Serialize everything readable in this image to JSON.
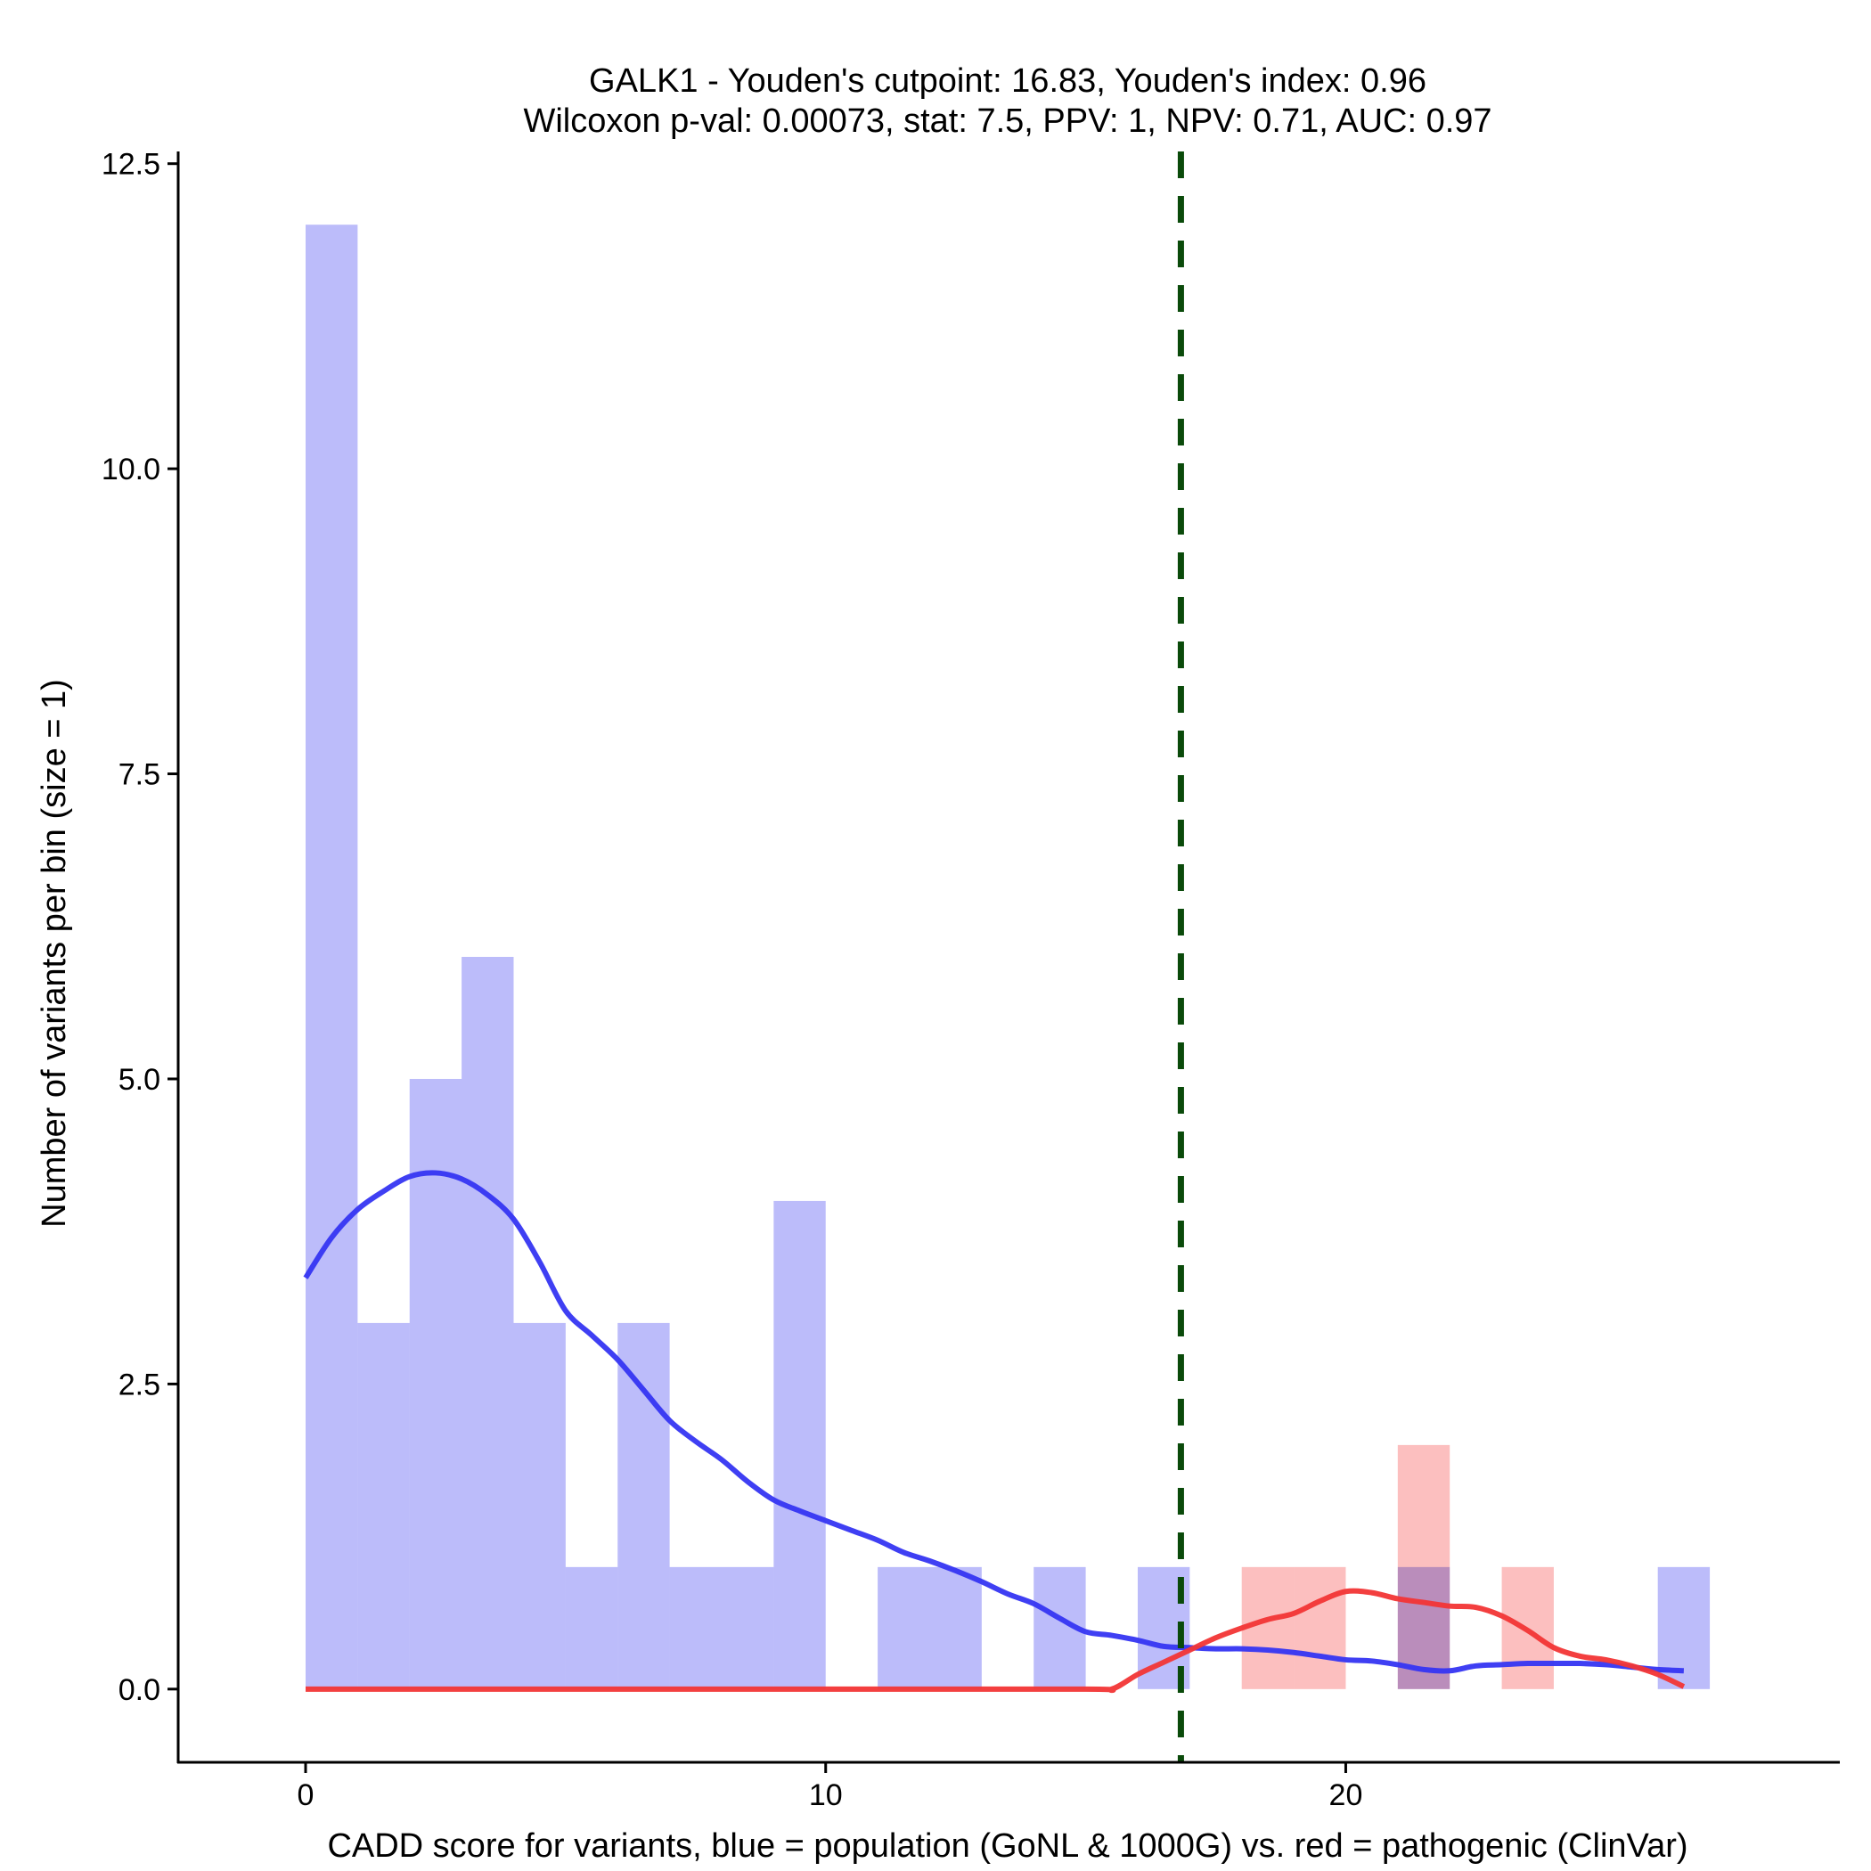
{
  "chart_data": {
    "type": "histogram",
    "title": "GALK1 - Youden's cutpoint: 16.83, Youden's index: 0.96",
    "subtitle": "Wilcoxon p-val: 0.00073, stat: 7.5, PPV: 1, NPV: 0.71, AUC: 0.97",
    "xlabel": "CADD score for variants, blue = population (GoNL & 1000G) vs. red = pathogenic (ClinVar)",
    "ylabel": "Number of variants per bin (size = 1)",
    "xlim": [
      -2.45,
      29.5
    ],
    "ylim": [
      -0.6,
      12.6
    ],
    "x_ticks": [
      0,
      10,
      20
    ],
    "x_tick_labels": [
      "0",
      "10",
      "20"
    ],
    "y_ticks": [
      0,
      2.5,
      5,
      7.5,
      10,
      12.5
    ],
    "y_tick_labels": [
      "0.0",
      "2.5",
      "5.0",
      "7.5",
      "10.0",
      "12.5"
    ],
    "bin_size": 1,
    "cutpoint": 16.83,
    "colors": {
      "population_bar": "#bcbcfa",
      "pathogenic_bar": "#fcbcbc",
      "population_line": "#3535f2",
      "pathogenic_line": "#f23535",
      "cutpoint_line": "#0a4a0a",
      "axis": "#000000"
    },
    "series": [
      {
        "name": "population",
        "kind": "bars",
        "bins": [
          {
            "x0": 0,
            "x1": 1,
            "count": 12
          },
          {
            "x0": 1,
            "x1": 2,
            "count": 3
          },
          {
            "x0": 2,
            "x1": 3,
            "count": 5
          },
          {
            "x0": 3,
            "x1": 4,
            "count": 6
          },
          {
            "x0": 4,
            "x1": 5,
            "count": 3
          },
          {
            "x0": 5,
            "x1": 6,
            "count": 1
          },
          {
            "x0": 6,
            "x1": 7,
            "count": 3
          },
          {
            "x0": 7,
            "x1": 8,
            "count": 1
          },
          {
            "x0": 8,
            "x1": 9,
            "count": 1
          },
          {
            "x0": 9,
            "x1": 10,
            "count": 4
          },
          {
            "x0": 11,
            "x1": 12,
            "count": 1
          },
          {
            "x0": 12,
            "x1": 13,
            "count": 1
          },
          {
            "x0": 14,
            "x1": 15,
            "count": 1
          },
          {
            "x0": 16,
            "x1": 17,
            "count": 1
          },
          {
            "x0": 21,
            "x1": 22,
            "count": 1
          },
          {
            "x0": 26,
            "x1": 27,
            "count": 1
          }
        ]
      },
      {
        "name": "pathogenic",
        "kind": "bars",
        "bins": [
          {
            "x0": 18,
            "x1": 19,
            "count": 1
          },
          {
            "x0": 19,
            "x1": 20,
            "count": 1
          },
          {
            "x0": 21,
            "x1": 22,
            "count": 2
          },
          {
            "x0": 23,
            "x1": 24,
            "count": 1
          }
        ]
      },
      {
        "name": "population density",
        "kind": "line",
        "x": [
          0,
          0.5,
          1,
          1.5,
          2,
          2.5,
          3,
          3.5,
          4,
          4.5,
          5,
          5.5,
          6,
          6.5,
          7,
          7.5,
          8,
          8.5,
          9,
          9.5,
          10,
          10.5,
          11,
          11.5,
          12,
          12.5,
          13,
          13.5,
          14,
          14.5,
          15,
          15.5,
          16,
          16.5,
          17,
          17.5,
          18,
          18.5,
          19,
          19.5,
          20,
          20.5,
          21,
          21.5,
          22,
          22.5,
          23,
          23.5,
          24,
          24.5,
          25,
          25.5,
          26,
          26.5
        ],
        "y": [
          3.37,
          3.7,
          3.93,
          4.08,
          4.2,
          4.23,
          4.18,
          4.05,
          3.85,
          3.5,
          3.1,
          2.9,
          2.7,
          2.45,
          2.2,
          2.03,
          1.88,
          1.7,
          1.55,
          1.46,
          1.38,
          1.3,
          1.22,
          1.12,
          1.05,
          0.97,
          0.88,
          0.78,
          0.7,
          0.58,
          0.47,
          0.44,
          0.4,
          0.35,
          0.34,
          0.33,
          0.33,
          0.32,
          0.3,
          0.27,
          0.24,
          0.23,
          0.2,
          0.16,
          0.15,
          0.19,
          0.2,
          0.21,
          0.21,
          0.21,
          0.2,
          0.18,
          0.16,
          0.15
        ]
      },
      {
        "name": "pathogenic density",
        "kind": "line",
        "x": [
          0,
          5,
          10,
          15,
          15.5,
          16,
          16.5,
          17,
          17.5,
          18,
          18.5,
          19,
          19.5,
          20,
          20.5,
          21,
          21.5,
          22,
          22.5,
          23,
          23.5,
          24,
          24.5,
          25,
          25.5,
          26,
          26.5
        ],
        "y": [
          0,
          0,
          0,
          0,
          0,
          0.12,
          0.22,
          0.32,
          0.42,
          0.5,
          0.57,
          0.62,
          0.72,
          0.8,
          0.79,
          0.74,
          0.71,
          0.68,
          0.67,
          0.6,
          0.48,
          0.34,
          0.27,
          0.24,
          0.19,
          0.12,
          0.02
        ]
      }
    ]
  }
}
